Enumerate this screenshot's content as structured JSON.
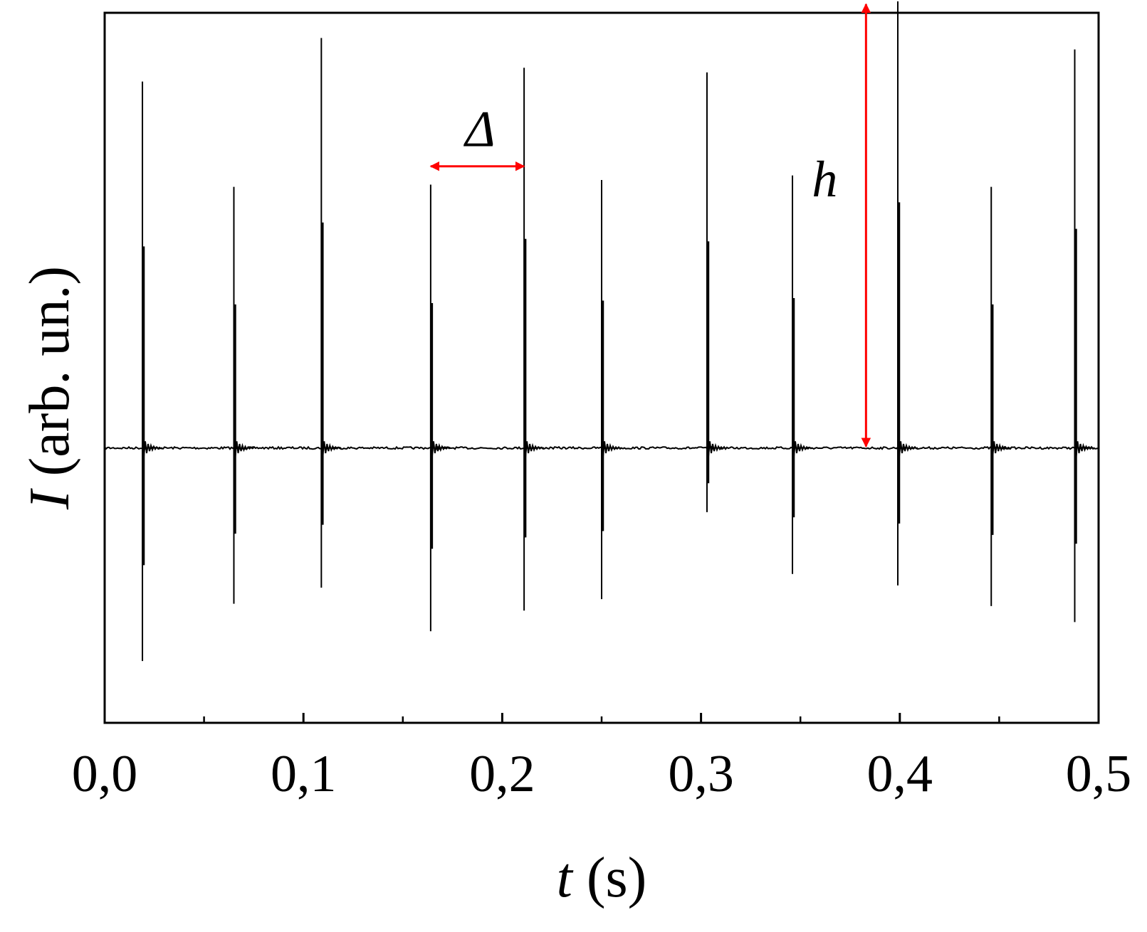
{
  "chart_data": {
    "type": "line",
    "xlabel": {
      "var": "t",
      "rest": " (s)"
    },
    "ylabel": {
      "var": "I",
      "rest": " (arb. un.)"
    },
    "xlim": [
      0,
      0.5
    ],
    "ylim": [
      -1.2,
      1.9
    ],
    "x_ticks": [
      {
        "value": 0.0,
        "label": "0,0"
      },
      {
        "value": 0.1,
        "label": "0,1"
      },
      {
        "value": 0.2,
        "label": "0,2"
      },
      {
        "value": 0.3,
        "label": "0,3"
      },
      {
        "value": 0.4,
        "label": "0,4"
      },
      {
        "value": 0.5,
        "label": "0,5"
      }
    ],
    "x_minor_ticks": [
      0.05,
      0.15,
      0.25,
      0.35,
      0.45
    ],
    "y_tick_labels": "none",
    "baseline": 0,
    "grid": false,
    "series": [
      {
        "color": "#000000",
        "spikes": [
          {
            "t": 0.019,
            "max": 1.6,
            "min": -0.93
          },
          {
            "t": 0.065,
            "max": 1.14,
            "min": -0.68
          },
          {
            "t": 0.109,
            "max": 1.79,
            "min": -0.61
          },
          {
            "t": 0.164,
            "max": 1.15,
            "min": -0.8
          },
          {
            "t": 0.211,
            "max": 1.66,
            "min": -0.71
          },
          {
            "t": 0.25,
            "max": 1.17,
            "min": -0.66
          },
          {
            "t": 0.303,
            "max": 1.64,
            "min": -0.28
          },
          {
            "t": 0.346,
            "max": 1.19,
            "min": -0.55
          },
          {
            "t": 0.399,
            "max": 1.95,
            "min": -0.6
          },
          {
            "t": 0.446,
            "max": 1.14,
            "min": -0.69
          },
          {
            "t": 0.488,
            "max": 1.74,
            "min": -0.76
          }
        ]
      }
    ],
    "annotations": [
      {
        "text": "Δ",
        "kind": "interval",
        "t_start": 0.164,
        "t_end": 0.211,
        "level": 1.23,
        "color": "#ff0000"
      },
      {
        "text": "h",
        "kind": "height",
        "t": 0.383,
        "from": 0,
        "to": 1.95,
        "color": "#ff0000"
      }
    ]
  }
}
